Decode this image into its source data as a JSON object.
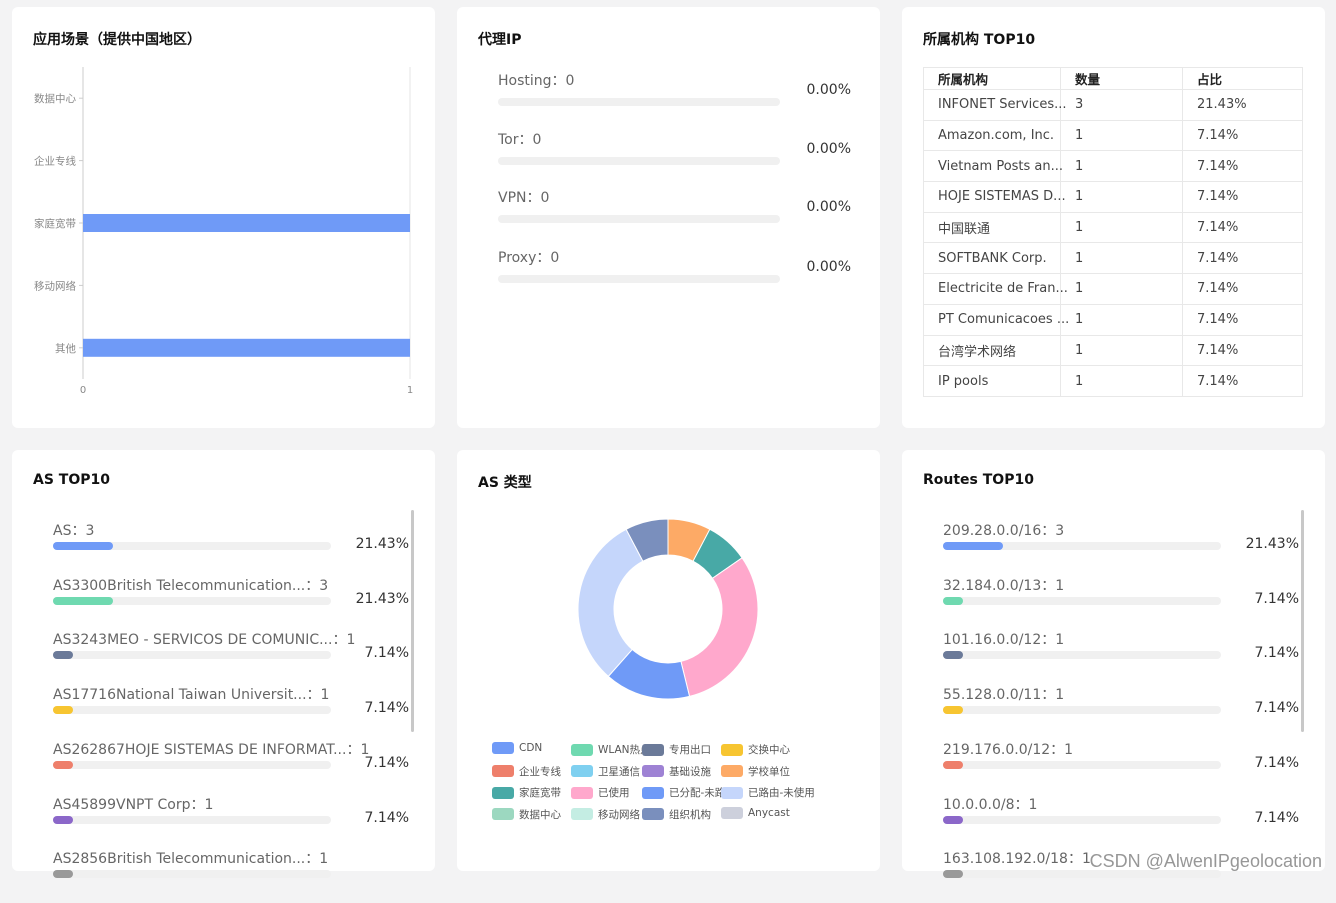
{
  "cards": {
    "scenario": {
      "title": "应用场景（提供中国地区）"
    },
    "proxy": {
      "title": "代理IP"
    },
    "org": {
      "title": "所属机构 TOP10"
    },
    "as_top": {
      "title": "AS TOP10"
    },
    "as_type": {
      "title": "AS 类型"
    },
    "routes": {
      "title": "Routes TOP10"
    }
  },
  "proxy_items": [
    {
      "label": "Hosting：0",
      "pct": "0.00%"
    },
    {
      "label": "Tor：0",
      "pct": "0.00%"
    },
    {
      "label": "VPN：0",
      "pct": "0.00%"
    },
    {
      "label": "Proxy：0",
      "pct": "0.00%"
    }
  ],
  "org_table": {
    "headers": [
      "所属机构",
      "数量",
      "占比"
    ],
    "rows": [
      [
        "INFONET Services...",
        "3",
        "21.43%"
      ],
      [
        "Amazon.com, Inc.",
        "1",
        "7.14%"
      ],
      [
        "Vietnam Posts an...",
        "1",
        "7.14%"
      ],
      [
        "HOJE SISTEMAS D...",
        "1",
        "7.14%"
      ],
      [
        "中国联通",
        "1",
        "7.14%"
      ],
      [
        "SOFTBANK Corp.",
        "1",
        "7.14%"
      ],
      [
        "Electricite de Fran...",
        "1",
        "7.14%"
      ],
      [
        "PT Comunicacoes ...",
        "1",
        "7.14%"
      ],
      [
        "台湾学术网络",
        "1",
        "7.14%"
      ],
      [
        "IP pools",
        "1",
        "7.14%"
      ]
    ]
  },
  "as_top10": [
    {
      "label": "AS：3",
      "pct": "21.43%",
      "fraction": 0.2143,
      "color": "#6f9af7"
    },
    {
      "label": "AS3300British Telecommunication...：3",
      "pct": "21.43%",
      "fraction": 0.2143,
      "color": "#6fd9b0"
    },
    {
      "label": "AS3243MEO - SERVICOS DE COMUNIC...：1",
      "pct": "7.14%",
      "fraction": 0.0714,
      "color": "#6b7a99"
    },
    {
      "label": "AS17716National Taiwan Universit...：1",
      "pct": "7.14%",
      "fraction": 0.0714,
      "color": "#f7c531"
    },
    {
      "label": "AS262867HOJE SISTEMAS DE INFORMAT...：1",
      "pct": "7.14%",
      "fraction": 0.0714,
      "color": "#ee7f6b"
    },
    {
      "label": "AS45899VNPT Corp：1",
      "pct": "7.14%",
      "fraction": 0.0714,
      "color": "#8b67c9"
    },
    {
      "label": "AS2856British Telecommunication...：1",
      "pct": "",
      "fraction": 0.0714,
      "color": "#999999"
    }
  ],
  "routes_top10": [
    {
      "label": "209.28.0.0/16：3",
      "pct": "21.43%",
      "fraction": 0.2143,
      "color": "#6f9af7"
    },
    {
      "label": "32.184.0.0/13：1",
      "pct": "7.14%",
      "fraction": 0.0714,
      "color": "#6fd9b0"
    },
    {
      "label": "101.16.0.0/12：1",
      "pct": "7.14%",
      "fraction": 0.0714,
      "color": "#6b7a99"
    },
    {
      "label": "55.128.0.0/11：1",
      "pct": "7.14%",
      "fraction": 0.0714,
      "color": "#f7c531"
    },
    {
      "label": "219.176.0.0/12：1",
      "pct": "7.14%",
      "fraction": 0.0714,
      "color": "#ee7f6b"
    },
    {
      "label": "10.0.0.0/8：1",
      "pct": "7.14%",
      "fraction": 0.0714,
      "color": "#8b67c9"
    },
    {
      "label": "163.108.192.0/18：1",
      "pct": "",
      "fraction": 0.0714,
      "color": "#999999"
    }
  ],
  "chart_data": [
    {
      "type": "bar",
      "orientation": "horizontal",
      "categories": [
        "数据中心",
        "企业专线",
        "家庭宽带",
        "移动网络",
        "其他"
      ],
      "values": [
        0,
        0,
        1,
        0,
        1
      ],
      "xlim": [
        0,
        1
      ],
      "xticks": [
        "0",
        "1"
      ],
      "color": "#6f9af7"
    },
    {
      "type": "pie",
      "donut": true,
      "slices": [
        {
          "name": "学校单位",
          "value": 1,
          "color": "#fdaa66"
        },
        {
          "name": "家庭宽带",
          "value": 1,
          "color": "#48a9a6"
        },
        {
          "name": "已使用",
          "value": 4,
          "color": "#ffa8cc"
        },
        {
          "name": "已分配-未路由",
          "value": 2,
          "color": "#6f9af7"
        },
        {
          "name": "已路由-未使用",
          "value": 4,
          "color": "#c5d6fb"
        },
        {
          "name": "组织机构",
          "value": 1,
          "color": "#7a8fbd"
        }
      ],
      "legend": [
        {
          "name": "CDN",
          "color": "#6f9af7"
        },
        {
          "name": "WLAN热点",
          "color": "#6fd9b0"
        },
        {
          "name": "专用出口",
          "color": "#6b7a99"
        },
        {
          "name": "交换中心",
          "color": "#f7c531"
        },
        {
          "name": "企业专线",
          "color": "#ee7f6b"
        },
        {
          "name": "卫星通信",
          "color": "#7fd0f0"
        },
        {
          "name": "基础设施",
          "color": "#9e82d4"
        },
        {
          "name": "学校单位",
          "color": "#fdaa66"
        },
        {
          "name": "家庭宽带",
          "color": "#48a9a6"
        },
        {
          "name": "已使用",
          "color": "#ffa8cc"
        },
        {
          "name": "已分配-未路由",
          "color": "#6f9af7"
        },
        {
          "name": "已路由-未使用",
          "color": "#c5d6fb"
        },
        {
          "name": "数据中心",
          "color": "#9cd8c0"
        },
        {
          "name": "移动网络",
          "color": "#c4ede3"
        },
        {
          "name": "组织机构",
          "color": "#7a8fbd"
        },
        {
          "name": "Anycast",
          "color": "#cdd0dc"
        }
      ],
      "legend_position": "bottom"
    }
  ],
  "watermark": "CSDN @AlwenIPgeolocation"
}
